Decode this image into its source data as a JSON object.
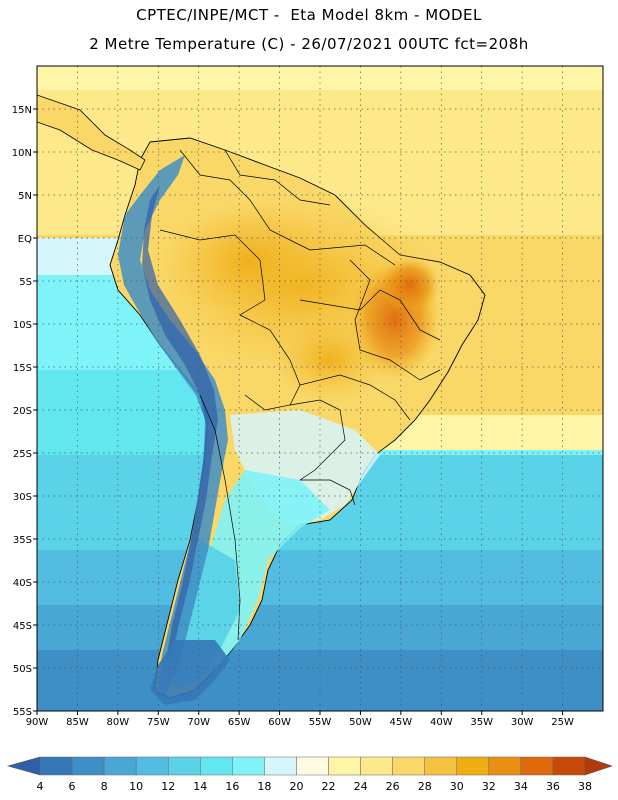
{
  "header": {
    "title_line1": "CPTEC/INPE/MCT -  Eta Model 8km - MODEL",
    "title_line2": "2 Metre Temperature (C) - 26/07/2021 00UTC fct=208h"
  },
  "map": {
    "lon_range": [
      -90,
      -20
    ],
    "lat_range": [
      -55,
      20
    ],
    "lon_ticks": [
      "90W",
      "85W",
      "80W",
      "75W",
      "70W",
      "65W",
      "60W",
      "55W",
      "50W",
      "45W",
      "40W",
      "35W",
      "30W",
      "25W"
    ],
    "lat_ticks": [
      "15N",
      "10N",
      "5N",
      "EQ",
      "5S",
      "10S",
      "15S",
      "20S",
      "25S",
      "30S",
      "35S",
      "40S",
      "45S",
      "50S",
      "55S"
    ]
  },
  "colorbar": {
    "labels": [
      "4",
      "6",
      "8",
      "10",
      "12",
      "14",
      "16",
      "18",
      "20",
      "22",
      "24",
      "26",
      "28",
      "30",
      "32",
      "34",
      "36",
      "38"
    ],
    "colors": [
      "#2f5fa8",
      "#3478b8",
      "#3f8fc7",
      "#49a7d4",
      "#52bde0",
      "#5ad2e8",
      "#62e6f0",
      "#7ef3f8",
      "#d5f6fb",
      "#fffbe2",
      "#fef5a6",
      "#fde98a",
      "#fad868",
      "#f4c342",
      "#efad14",
      "#e98f13",
      "#de6a0c",
      "#c84a08",
      "#b43a0a"
    ]
  }
}
